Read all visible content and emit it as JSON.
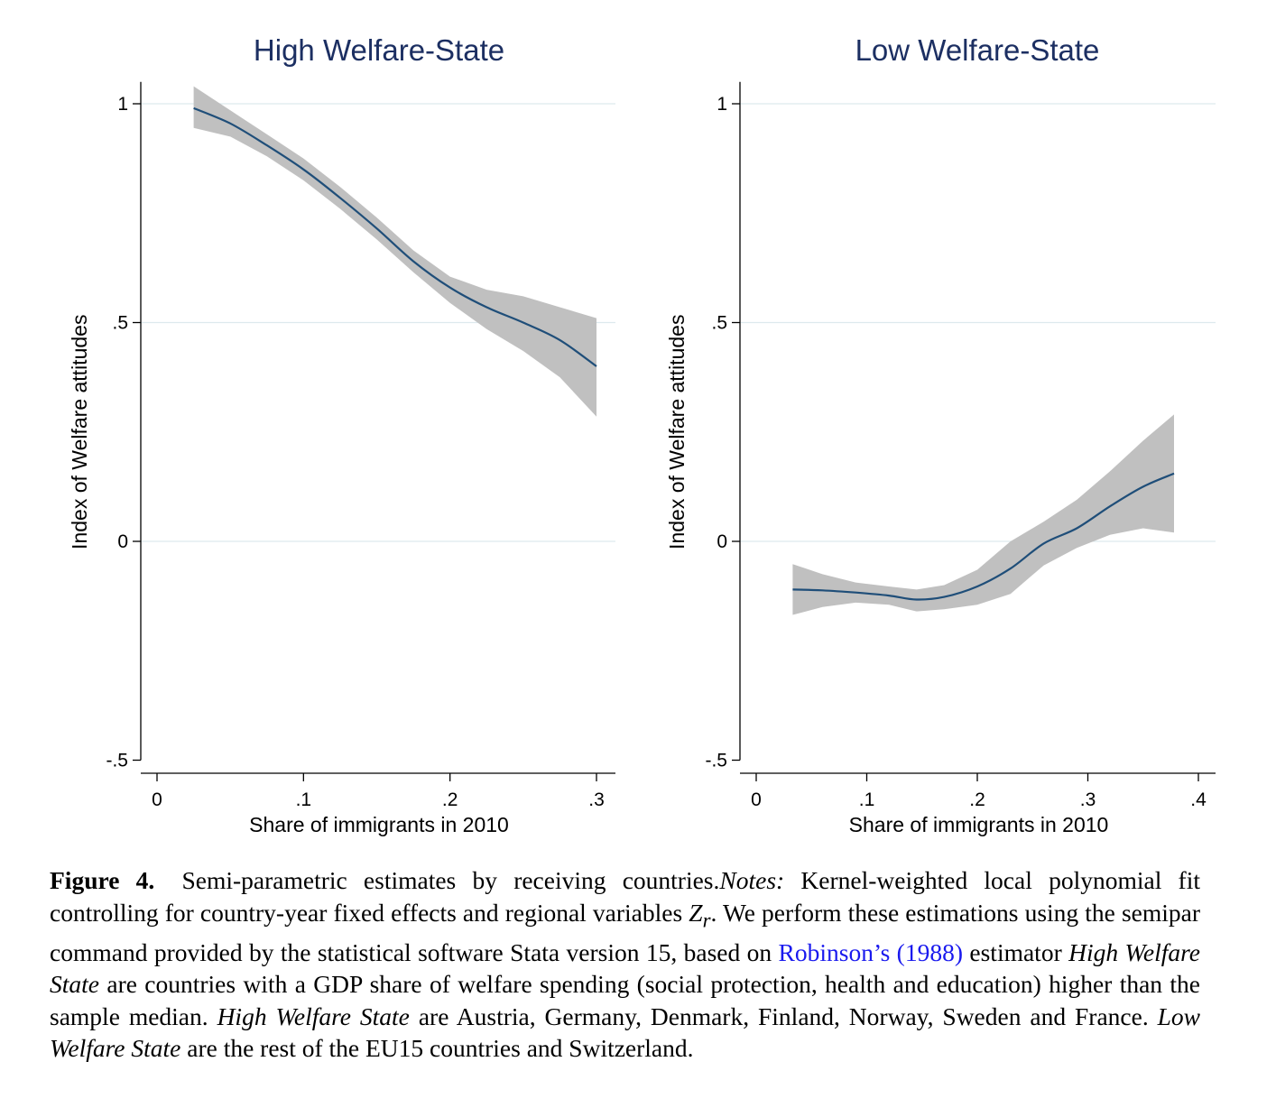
{
  "caption": {
    "figure_label": "Figure 4.",
    "title": "Semi-parametric estimates by receiving countries.",
    "notes_label": "Notes:",
    "text_a": "Kernel-weighted local polynomial fit controlling for country-year fixed effects and regional variables",
    "z_symbol": "Z",
    "z_subscript": "r",
    "text_b": ". We perform these estimations using the semipar command provided by the statistical software Stata version 15, based on",
    "ref_link": "Robinson’s (1988)",
    "text_c": "estimator",
    "italic_high_1": "High Welfare State",
    "text_d": "are countries with a GDP share of welfare spending (social protection, health and education) higher than the sample median.",
    "italic_high_2": "High Welfare State",
    "text_e": "are Austria, Germany, Denmark, Finland, Norway, Sweden and France.",
    "italic_low": "Low Welfare State",
    "text_f": "are the rest of the EU15 countries and Switzerland."
  },
  "colors": {
    "title": "#1c2f62",
    "fit_line": "#1f4e79",
    "confidence_band": "#c0c0c0",
    "gridline": "#dde9ee",
    "link": "#1a1aee"
  },
  "chart_data": [
    {
      "type": "line",
      "title": "High Welfare-State",
      "xlabel": "Share of immigrants in 2010",
      "ylabel": "Index of Welfare attitudes",
      "xlim": [
        0,
        0.31
      ],
      "ylim": [
        -0.5,
        1.05
      ],
      "x_ticks": [
        0,
        0.1,
        0.2,
        0.3
      ],
      "x_tick_labels": [
        "0",
        ".1",
        ".2",
        ".3"
      ],
      "y_ticks": [
        -0.5,
        0,
        0.5,
        1
      ],
      "y_tick_labels": [
        "-.5",
        "0",
        ".5",
        "1"
      ],
      "grid": "horizontal",
      "legend": "none",
      "series": [
        {
          "x": [
            0.025,
            0.05,
            0.075,
            0.1,
            0.125,
            0.15,
            0.175,
            0.2,
            0.225,
            0.25,
            0.275,
            0.3
          ],
          "y": [
            0.99,
            0.955,
            0.905,
            0.85,
            0.785,
            0.715,
            0.64,
            0.58,
            0.535,
            0.5,
            0.46,
            0.4
          ],
          "lower": [
            0.945,
            0.925,
            0.88,
            0.825,
            0.76,
            0.69,
            0.615,
            0.545,
            0.485,
            0.435,
            0.375,
            0.285
          ],
          "upper": [
            1.04,
            0.985,
            0.93,
            0.875,
            0.81,
            0.74,
            0.665,
            0.605,
            0.575,
            0.56,
            0.535,
            0.51
          ]
        }
      ]
    },
    {
      "type": "line",
      "title": "Low Welfare-State",
      "xlabel": "Share of immigrants in 2010",
      "ylabel": "Index of Welfare attitudes",
      "xlim": [
        0,
        0.41
      ],
      "ylim": [
        -0.5,
        1.05
      ],
      "x_ticks": [
        0,
        0.1,
        0.2,
        0.3,
        0.4
      ],
      "x_tick_labels": [
        "0",
        ".1",
        ".2",
        ".3",
        ".4"
      ],
      "y_ticks": [
        -0.5,
        0,
        0.5,
        1
      ],
      "y_tick_labels": [
        "-.5",
        "0",
        ".5",
        "1"
      ],
      "grid": "horizontal",
      "legend": "none",
      "series": [
        {
          "x": [
            0.033,
            0.06,
            0.09,
            0.12,
            0.145,
            0.17,
            0.2,
            0.23,
            0.26,
            0.29,
            0.32,
            0.35,
            0.378
          ],
          "y": [
            -0.11,
            -0.112,
            -0.117,
            -0.124,
            -0.133,
            -0.127,
            -0.103,
            -0.062,
            -0.005,
            0.03,
            0.08,
            0.125,
            0.155
          ],
          "lower": [
            -0.168,
            -0.15,
            -0.14,
            -0.145,
            -0.16,
            -0.155,
            -0.145,
            -0.12,
            -0.055,
            -0.015,
            0.015,
            0.03,
            0.02
          ],
          "upper": [
            -0.052,
            -0.075,
            -0.094,
            -0.103,
            -0.11,
            -0.1,
            -0.065,
            0.0,
            0.045,
            0.095,
            0.16,
            0.23,
            0.29
          ]
        }
      ]
    }
  ]
}
